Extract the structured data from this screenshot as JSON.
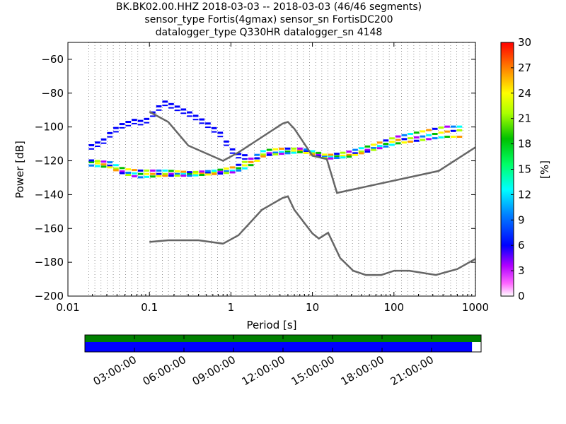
{
  "chart_data": {
    "type": "heatmap",
    "title_lines": [
      "BK.BK02.00.HHZ   2018-03-03 -- 2018-03-03  (46/46 segments)",
      "sensor_type Fortis(4gmax) sensor_sn FortisDC200",
      "datalogger_type Q330HR datalogger_sn 4148"
    ],
    "xlabel": "Period [s]",
    "ylabel": "Power [dB]",
    "x_scale": "log",
    "xlim": [
      0.01,
      1000
    ],
    "ylim": [
      -200,
      -50
    ],
    "x_tick_labels": [
      "0.01",
      "0.1",
      "1",
      "10",
      "100",
      "1000"
    ],
    "y_tick_values": [
      -60,
      -80,
      -100,
      -120,
      -140,
      -160,
      -180,
      -200
    ],
    "y_tick_labels": [
      "−60",
      "−80",
      "−100",
      "−120",
      "−140",
      "−160",
      "−180",
      "−200"
    ],
    "grid": "dotted vertical lines at period bins",
    "colorbar": {
      "label": "[%]",
      "range": [
        0,
        30
      ],
      "tick_labels": [
        "0",
        "3",
        "6",
        "9",
        "12",
        "15",
        "18",
        "21",
        "24",
        "27",
        "30"
      ]
    },
    "noise_models": [
      {
        "points": [
          [
            0.1,
            -91
          ],
          [
            0.17,
            -97
          ],
          [
            0.3,
            -111
          ],
          [
            0.8,
            -120
          ],
          [
            1.24,
            -115
          ],
          [
            2.4,
            -106
          ],
          [
            4.3,
            -98
          ],
          [
            5,
            -97
          ],
          [
            6,
            -101
          ],
          [
            10,
            -117
          ],
          [
            15,
            -119
          ],
          [
            20,
            -139
          ],
          [
            354,
            -126
          ],
          [
            1000,
            -112
          ]
        ]
      },
      {
        "points": [
          [
            0.1,
            -168
          ],
          [
            0.17,
            -167
          ],
          [
            0.4,
            -167
          ],
          [
            0.8,
            -169
          ],
          [
            1.24,
            -164
          ],
          [
            2.4,
            -149
          ],
          [
            4.3,
            -142
          ],
          [
            5,
            -141
          ],
          [
            6,
            -149
          ],
          [
            10,
            -163
          ],
          [
            12,
            -166
          ],
          [
            15.6,
            -162.5
          ],
          [
            21.9,
            -177.5
          ],
          [
            31.6,
            -185
          ],
          [
            45,
            -187.5
          ],
          [
            70,
            -187.5
          ],
          [
            101,
            -185
          ],
          [
            154,
            -185
          ],
          [
            328,
            -187.5
          ],
          [
            600,
            -184
          ],
          [
            1000,
            -178
          ]
        ]
      }
    ],
    "psd_modes": [
      {
        "band": "microseism",
        "points": [
          [
            0.018,
            -111
          ],
          [
            0.025,
            -108
          ],
          [
            0.03,
            -104
          ],
          [
            0.04,
            -99
          ],
          [
            0.06,
            -96
          ],
          [
            0.08,
            -97
          ],
          [
            0.1,
            -92
          ],
          [
            0.14,
            -85
          ],
          [
            0.2,
            -88
          ],
          [
            0.3,
            -92
          ],
          [
            0.45,
            -97
          ],
          [
            0.7,
            -104
          ],
          [
            0.9,
            -112
          ],
          [
            1.1,
            -116
          ],
          [
            1.4,
            -117
          ]
        ],
        "pct": 5
      },
      {
        "band": "main",
        "points": [
          [
            0.018,
            -121
          ],
          [
            0.03,
            -123
          ],
          [
            0.045,
            -127
          ],
          [
            0.07,
            -128
          ],
          [
            0.15,
            -128
          ],
          [
            0.3,
            -128
          ],
          [
            0.6,
            -127
          ],
          [
            1,
            -126
          ],
          [
            1.5,
            -122
          ],
          [
            2.4,
            -116
          ],
          [
            4,
            -115
          ],
          [
            7,
            -114
          ],
          [
            10,
            -116
          ],
          [
            14,
            -118
          ],
          [
            25,
            -117
          ],
          [
            50,
            -113
          ],
          [
            100,
            -108
          ],
          [
            200,
            -106
          ],
          [
            400,
            -103
          ],
          [
            650,
            -102
          ]
        ],
        "pct": 18
      },
      {
        "band": "main-upper",
        "points": [
          [
            0.018,
            -120
          ],
          [
            0.03,
            -121
          ],
          [
            0.045,
            -125
          ],
          [
            0.07,
            -126
          ],
          [
            0.15,
            -126
          ],
          [
            0.3,
            -127
          ],
          [
            0.6,
            -126
          ],
          [
            1,
            -124
          ],
          [
            1.5,
            -120
          ],
          [
            2.4,
            -114
          ],
          [
            4,
            -113
          ],
          [
            7,
            -113
          ],
          [
            10,
            -115
          ],
          [
            14,
            -117
          ],
          [
            25,
            -115
          ],
          [
            50,
            -111
          ],
          [
            100,
            -106
          ],
          [
            200,
            -103
          ],
          [
            400,
            -100
          ],
          [
            650,
            -100
          ]
        ],
        "pct": 8
      },
      {
        "band": "main-lower",
        "points": [
          [
            0.018,
            -123
          ],
          [
            0.03,
            -124
          ],
          [
            0.045,
            -128
          ],
          [
            0.07,
            -130
          ],
          [
            0.15,
            -129
          ],
          [
            0.3,
            -129
          ],
          [
            0.6,
            -128
          ],
          [
            1,
            -127
          ],
          [
            1.5,
            -124
          ],
          [
            2.4,
            -117
          ],
          [
            4,
            -116
          ],
          [
            7,
            -115
          ],
          [
            10,
            -117
          ],
          [
            14,
            -119
          ],
          [
            25,
            -118
          ],
          [
            50,
            -114
          ],
          [
            100,
            -110
          ],
          [
            200,
            -108
          ],
          [
            400,
            -106
          ],
          [
            650,
            -106
          ]
        ],
        "pct": 27
      }
    ],
    "time_axis": {
      "tick_labels": [
        "03:00:00",
        "06:00:00",
        "09:00:00",
        "12:00:00",
        "15:00:00",
        "18:00:00",
        "21:00:00"
      ],
      "coverage_bar_color": "#008000",
      "data_bar_color": "#0000ff",
      "data_coverage_fraction": 0.977
    }
  }
}
